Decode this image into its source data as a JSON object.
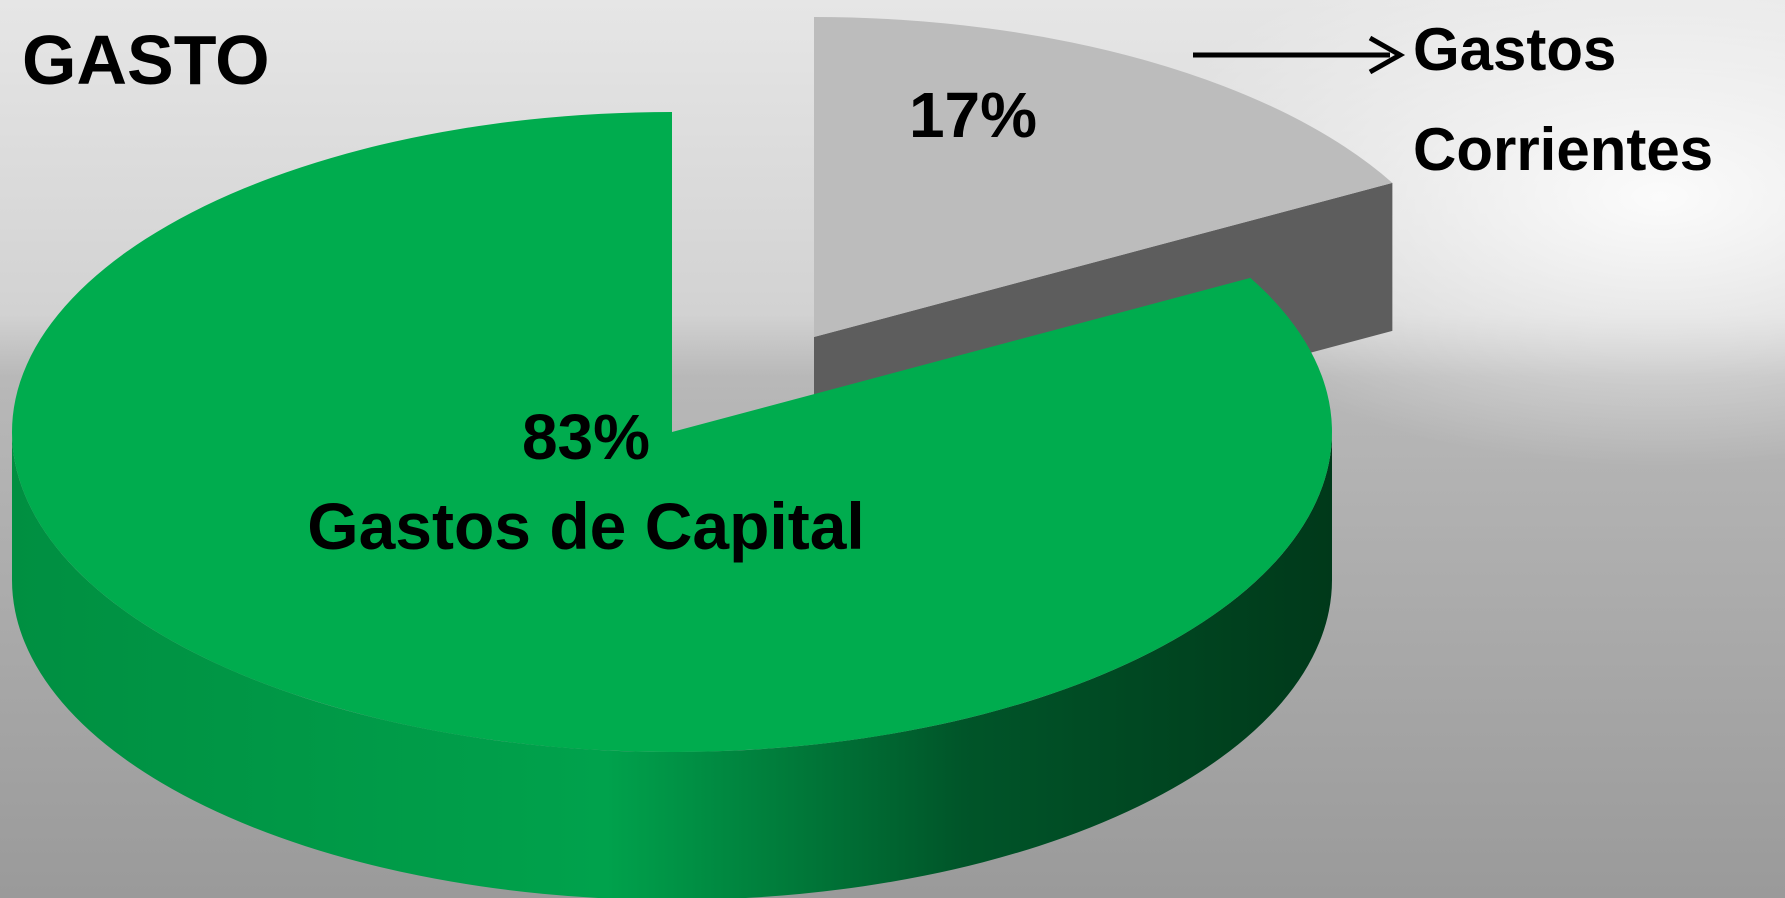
{
  "chart_data": {
    "type": "pie",
    "title": "GASTO",
    "categories": [
      "Gastos de Capital",
      "Gastos Corrientes"
    ],
    "values": [
      83,
      17
    ],
    "value_labels": [
      "83%",
      "17%"
    ],
    "colors": [
      "#00ac4e",
      "#bcbcbc"
    ]
  }
}
